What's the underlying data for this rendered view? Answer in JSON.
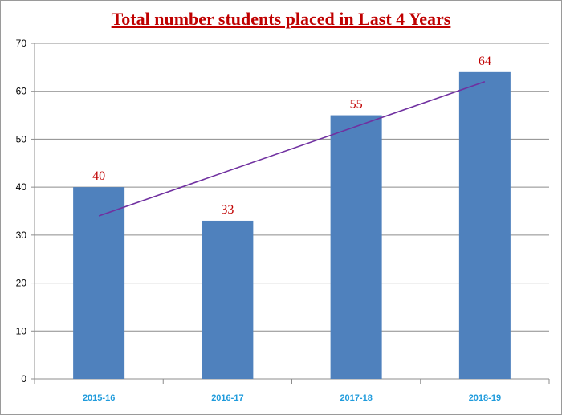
{
  "chart_data": {
    "type": "bar",
    "title": "Total number students placed in Last 4 Years",
    "categories": [
      "2015-16",
      "2016-17",
      "2017-18",
      "2018-19"
    ],
    "values": [
      40,
      33,
      55,
      64
    ],
    "data_labels": [
      "40",
      "33",
      "55",
      "64"
    ],
    "ylim": [
      0,
      70
    ],
    "yticks": [
      0,
      10,
      20,
      30,
      40,
      50,
      60,
      70
    ],
    "grid": true,
    "legend": "none",
    "trendline": {
      "type": "linear",
      "color": "#7030a0",
      "start": 34,
      "end": 62
    },
    "colors": {
      "bar": "#4f81bd",
      "title": "#c00000",
      "data_label": "#c00000",
      "category_label": "#1f9bdc",
      "grid": "#8c8c8c"
    }
  }
}
